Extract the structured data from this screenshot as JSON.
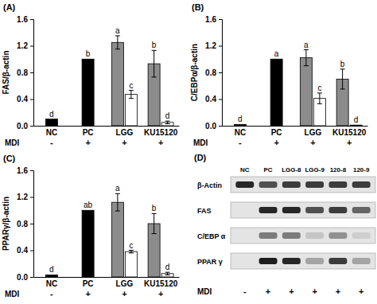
{
  "chart_data": [
    {
      "type": "bar",
      "title": "(A)",
      "y_label": "FAS/β-actin",
      "categories": [
        "NC",
        "PC",
        "LGG",
        "KU15120"
      ],
      "x_sublabels": {
        "label": "MDI",
        "values": [
          "-",
          "+",
          "+",
          "+"
        ]
      },
      "ylim": [
        0,
        1.6
      ],
      "yticks": [
        {
          "value": 0,
          "label": "0.0"
        },
        0.4,
        0.8,
        1.2,
        1.6
      ],
      "series": [
        {
          "color": "#000000",
          "values": [
            0.1,
            1.0,
            null,
            null
          ],
          "errors": [
            null,
            null,
            null,
            null
          ],
          "letters": [
            "d",
            "b",
            null,
            null
          ]
        },
        {
          "color": "#8c8c8c",
          "values": [
            null,
            null,
            1.25,
            0.93
          ],
          "errors": [
            null,
            null,
            0.1,
            0.2
          ],
          "letters": [
            null,
            null,
            "a",
            "b"
          ]
        },
        {
          "color": "#ffffff",
          "values": [
            null,
            null,
            0.47,
            0.05
          ],
          "errors": [
            null,
            null,
            0.06,
            0.02
          ],
          "letters": [
            null,
            null,
            "c",
            "d"
          ]
        }
      ]
    },
    {
      "type": "bar",
      "title": "(B)",
      "y_label": "C/EBPα/β-actin",
      "categories": [
        "NC",
        "PC",
        "LGG",
        "KU15120"
      ],
      "x_sublabels": {
        "label": "MDI",
        "values": [
          "-",
          "+",
          "+",
          "+"
        ]
      },
      "ylim": [
        0,
        1.6
      ],
      "yticks": [
        {
          "value": 0,
          "label": "0.0"
        },
        0.4,
        0.8,
        1.2,
        1.6
      ],
      "series": [
        {
          "color": "#000000",
          "values": [
            0.02,
            1.0,
            null,
            null
          ],
          "errors": [
            null,
            null,
            null,
            null
          ],
          "letters": [
            "d",
            "a",
            null,
            null
          ]
        },
        {
          "color": "#8c8c8c",
          "values": [
            null,
            null,
            1.02,
            0.7
          ],
          "errors": [
            null,
            null,
            0.12,
            0.15
          ],
          "letters": [
            null,
            null,
            "a",
            "b"
          ]
        },
        {
          "color": "#ffffff",
          "values": [
            null,
            null,
            0.41,
            0.01
          ],
          "errors": [
            null,
            null,
            0.08,
            null
          ],
          "letters": [
            null,
            null,
            "c",
            "d"
          ]
        }
      ]
    },
    {
      "type": "bar",
      "title": "(C)",
      "y_label": "PPARγ/β-actin",
      "categories": [
        "NC",
        "PC",
        "LGG",
        "KU15120"
      ],
      "x_sublabels": {
        "label": "MDI",
        "values": [
          "-",
          "+",
          "+",
          "+"
        ]
      },
      "ylim": [
        0,
        1.6
      ],
      "yticks": [
        {
          "value": 0,
          "label": "0.0"
        },
        0.4,
        0.8,
        1.2,
        1.6
      ],
      "series": [
        {
          "color": "#000000",
          "values": [
            0.03,
            1.0,
            null,
            null
          ],
          "errors": [
            null,
            null,
            null,
            null
          ],
          "letters": [
            "d",
            "ab",
            null,
            null
          ]
        },
        {
          "color": "#8c8c8c",
          "values": [
            null,
            null,
            1.12,
            0.8
          ],
          "errors": [
            null,
            null,
            0.13,
            0.15
          ],
          "letters": [
            null,
            null,
            "a",
            "b"
          ]
        },
        {
          "color": "#ffffff",
          "values": [
            null,
            null,
            0.38,
            0.05
          ],
          "errors": [
            null,
            null,
            0.02,
            0.02
          ],
          "letters": [
            null,
            null,
            "c",
            "d"
          ]
        }
      ]
    }
  ],
  "blot": {
    "title": "(D)",
    "lanes": [
      "NC",
      "PC",
      "LGG-8",
      "LGG-9",
      "120-8",
      "120-9"
    ],
    "rows": [
      {
        "label": "β-Actin",
        "intensity": [
          0.9,
          0.7,
          0.8,
          0.8,
          0.8,
          0.8
        ]
      },
      {
        "label": "FAS",
        "intensity": [
          0,
          0.9,
          0.9,
          0.7,
          0.8,
          0.6
        ]
      },
      {
        "label": "C/EBP α",
        "intensity": [
          0,
          0.5,
          0.5,
          0.15,
          0.4,
          0.1
        ]
      },
      {
        "label": "PPAR γ",
        "intensity": [
          0,
          0.95,
          0.9,
          0.3,
          0.8,
          0.3
        ]
      }
    ],
    "row_label": "MDI",
    "row_values": [
      "-",
      "+",
      "+",
      "+",
      "+",
      "+"
    ]
  }
}
